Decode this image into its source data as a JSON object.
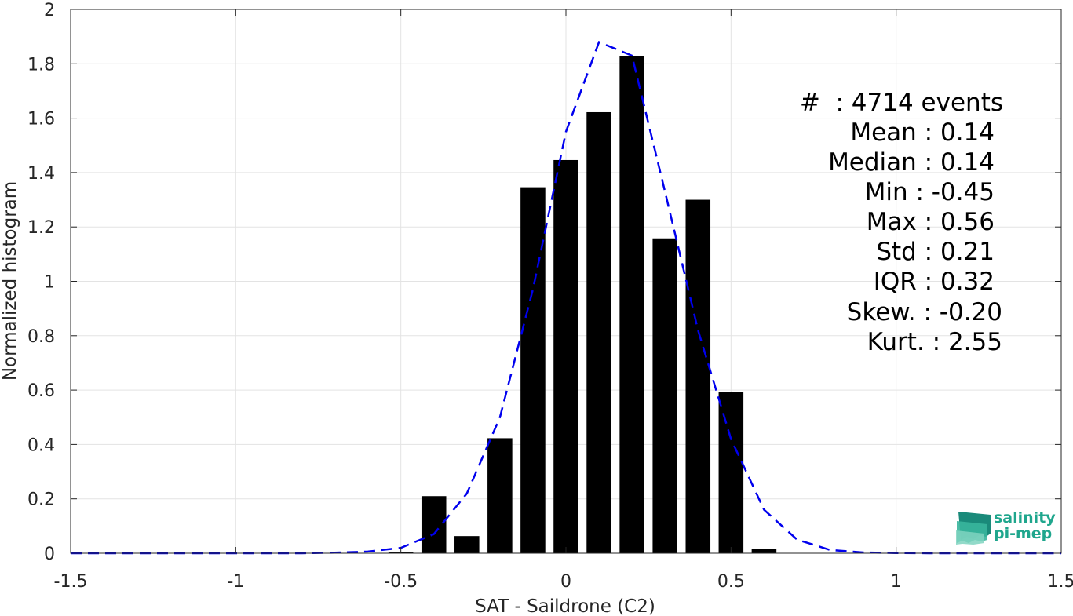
{
  "chart_data": {
    "type": "bar",
    "xlabel": "SAT - Saildrone (C2)",
    "ylabel": "Normalized histogram",
    "xlim": [
      -1.5,
      1.5
    ],
    "ylim": [
      0,
      2
    ],
    "xticks": [
      -1.5,
      -1,
      -0.5,
      0,
      0.5,
      1,
      1.5
    ],
    "xtick_labels": [
      "-1.5",
      "-1",
      "-0.5",
      "0",
      "0.5",
      "1",
      "1.5"
    ],
    "yticks": [
      0,
      0.2,
      0.4,
      0.6,
      0.8,
      1,
      1.2,
      1.4,
      1.6,
      1.8,
      2
    ],
    "ytick_labels": [
      "0",
      "0.2",
      "0.4",
      "0.6",
      "0.8",
      "1",
      "1.2",
      "1.4",
      "1.6",
      "1.8",
      "2"
    ],
    "grid": true,
    "bar_color": "#000000",
    "bar_width": 0.075,
    "bars": {
      "x": [
        -0.5,
        -0.4,
        -0.3,
        -0.2,
        -0.1,
        0,
        0.1,
        0.2,
        0.3,
        0.4,
        0.5,
        0.6
      ],
      "values": [
        0.004,
        0.21,
        0.063,
        0.423,
        1.346,
        1.446,
        1.622,
        1.827,
        1.158,
        1.3,
        0.592,
        0.017
      ]
    },
    "fit_curve": {
      "style": "dashed",
      "color": "#0000ee",
      "x": [
        -1.5,
        -1.4,
        -1.3,
        -1.2,
        -1.1,
        -1.0,
        -0.9,
        -0.8,
        -0.7,
        -0.6,
        -0.5,
        -0.4,
        -0.3,
        -0.2,
        -0.1,
        0.0,
        0.1,
        0.2,
        0.3,
        0.4,
        0.5,
        0.6,
        0.7,
        0.8,
        0.9,
        1.0,
        1.1,
        1.2,
        1.3,
        1.4,
        1.5
      ],
      "y": [
        0,
        0,
        0,
        0,
        0,
        0,
        0,
        0,
        0.002,
        0.006,
        0.02,
        0.07,
        0.22,
        0.5,
        0.97,
        1.55,
        1.88,
        1.83,
        1.33,
        0.82,
        0.42,
        0.16,
        0.05,
        0.012,
        0.003,
        0.001,
        0,
        0,
        0,
        0,
        0
      ]
    },
    "stats_lines": [
      "#  : 4714 events",
      "Mean : 0.14",
      "Median : 0.14",
      "Min : -0.45",
      "Max : 0.56",
      "Std : 0.21",
      "IQR : 0.32",
      "Skew. : -0.20",
      "Kurt. : 2.55"
    ]
  },
  "logo": {
    "line1": "salinity",
    "line2": "pi-mep"
  }
}
